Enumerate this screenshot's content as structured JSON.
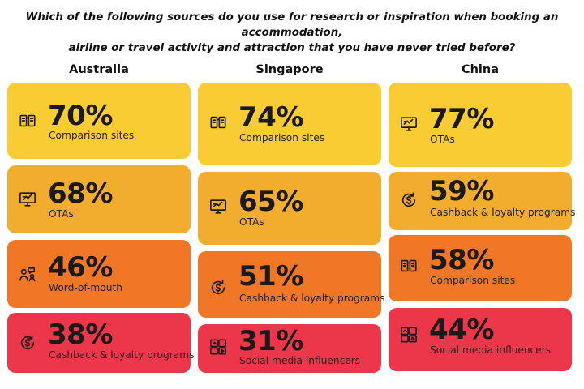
{
  "question": {
    "line1": "Which of the following sources do you use for research or inspiration when booking an accommodation,",
    "line2": "airline or travel activity and attraction that you have never tried before?"
  },
  "colors": {
    "yellow": "#FACC34",
    "amber": "#F2AD2E",
    "orange": "#F07726",
    "red": "#EC3649"
  },
  "columns": [
    {
      "title": "Australia",
      "cards": [
        {
          "pct": "70%",
          "label": "Comparison sites",
          "icon": "comparison-icon",
          "color": "#FACC34"
        },
        {
          "pct": "68%",
          "label": "OTAs",
          "icon": "ota-icon",
          "color": "#F2AD2E"
        },
        {
          "pct": "46%",
          "label": "Word-of-mouth",
          "icon": "word-of-mouth-icon",
          "color": "#F07726"
        },
        {
          "pct": "38%",
          "label": "Cashback & loyalty programs",
          "icon": "cashback-icon",
          "color": "#EC3649"
        }
      ]
    },
    {
      "title": "Singapore",
      "cards": [
        {
          "pct": "74%",
          "label": "Comparison sites",
          "icon": "comparison-icon",
          "color": "#FACC34"
        },
        {
          "pct": "65%",
          "label": "OTAs",
          "icon": "ota-icon",
          "color": "#F2AD2E"
        },
        {
          "pct": "51%",
          "label": "Cashback & loyalty programs",
          "icon": "cashback-icon",
          "color": "#F07726"
        },
        {
          "pct": "31%",
          "label": "Social media influencers",
          "icon": "social-media-icon",
          "color": "#EC3649"
        }
      ]
    },
    {
      "title": "China",
      "cards": [
        {
          "pct": "77%",
          "label": "OTAs",
          "icon": "ota-icon",
          "color": "#FACC34"
        },
        {
          "pct": "59%",
          "label": "Cashback & loyalty programs",
          "icon": "cashback-icon",
          "color": "#F2AD2E"
        },
        {
          "pct": "58%",
          "label": "Comparison sites",
          "icon": "comparison-icon",
          "color": "#F07726"
        },
        {
          "pct": "44%",
          "label": "Social media influencers",
          "icon": "social-media-icon",
          "color": "#EC3649"
        }
      ]
    }
  ]
}
